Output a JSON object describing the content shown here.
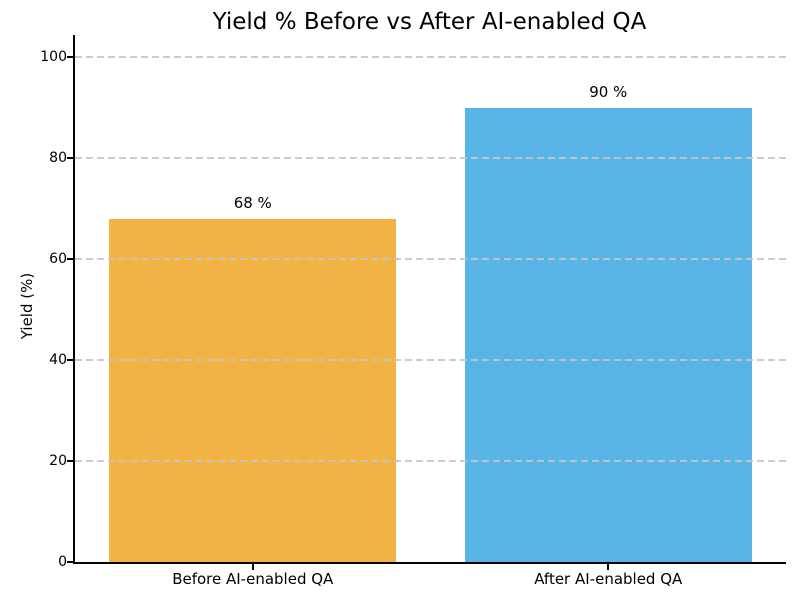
{
  "chart_data": {
    "type": "bar",
    "title": "Yield % Before vs After AI-enabled QA",
    "xlabel": "",
    "ylabel": "Yield (%)",
    "categories": [
      "Before AI-enabled QA",
      "After AI-enabled QA"
    ],
    "values": [
      68,
      90
    ],
    "value_labels": [
      "68 %",
      "90 %"
    ],
    "bar_colors": [
      "#f2b344",
      "#57b4e5"
    ],
    "yticks": [
      0,
      20,
      40,
      60,
      80,
      100
    ],
    "ytick_labels": [
      "0",
      "20",
      "40",
      "60",
      "80",
      "100"
    ],
    "ylim": [
      0,
      104.4
    ],
    "grid": {
      "axis": "y",
      "style": "dashed",
      "color": "#c6c6c6",
      "on": true
    },
    "legend": "none",
    "axis_color": "#000000",
    "text_color": "#000000",
    "background": "#ffffff"
  }
}
